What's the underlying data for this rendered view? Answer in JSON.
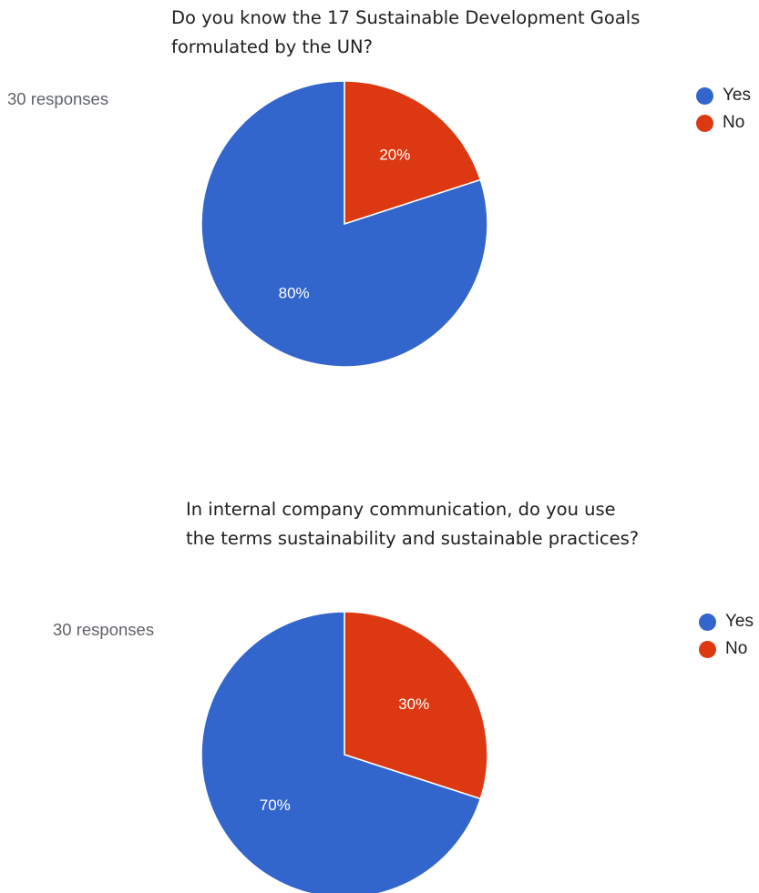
{
  "colors": {
    "yes": "#3366cc",
    "no": "#dc3912",
    "slice_label": "#ffffff"
  },
  "chart_data": [
    {
      "type": "pie",
      "title_lines": [
        "Do you know the 17 Sustainable Development Goals",
        "formulated by the UN?"
      ],
      "responses": "30 responses",
      "legend": [
        "Yes",
        "No"
      ],
      "categories": [
        "Yes",
        "No"
      ],
      "values": [
        80,
        20
      ],
      "data_labels": [
        "80%",
        "20%"
      ],
      "legend_placement": "right"
    },
    {
      "type": "pie",
      "title_lines": [
        "In internal company communication, do you use",
        "the terms sustainability and sustainable practices?"
      ],
      "responses": "30 responses",
      "legend": [
        "Yes",
        "No"
      ],
      "categories": [
        "Yes",
        "No"
      ],
      "values": [
        70,
        30
      ],
      "data_labels": [
        "70%",
        "30%"
      ],
      "legend_placement": "right"
    }
  ]
}
